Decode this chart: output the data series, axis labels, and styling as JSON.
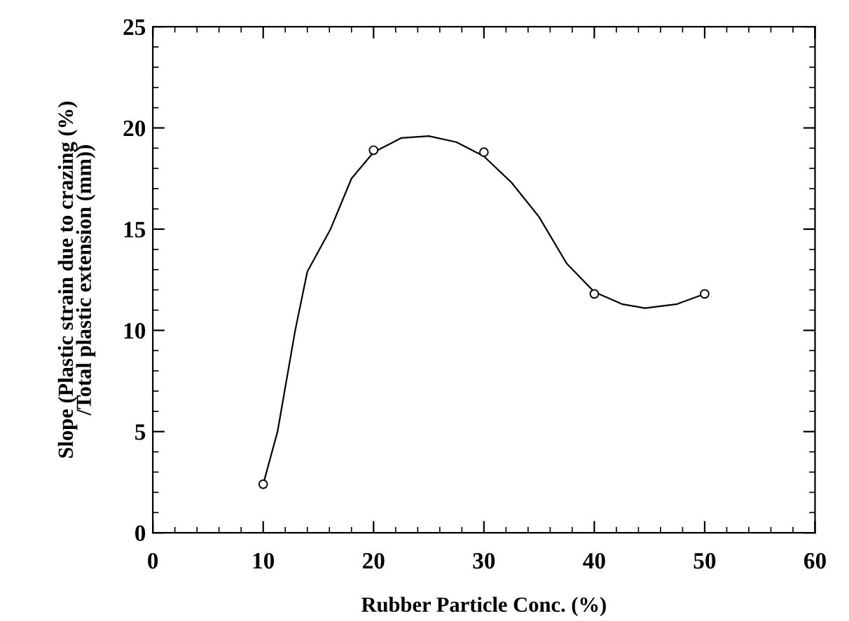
{
  "chart_data": {
    "type": "line",
    "xlabel": "Rubber Particle Conc. (%)",
    "ylabel": "Slope (Plastic strain due to crazing (%)\n/Total plastic extension (mm))",
    "xlim": [
      0,
      60
    ],
    "ylim": [
      0,
      25
    ],
    "xticks": [
      0,
      10,
      20,
      30,
      40,
      50,
      60
    ],
    "yticks": [
      0,
      5,
      10,
      15,
      20,
      25
    ],
    "grid": false,
    "legend": false,
    "series": [
      {
        "color": "#000000",
        "marker": "none",
        "x": [
          10,
          11.3,
          12.9,
          14,
          16.1,
          18,
          20,
          22.5,
          25,
          27.5,
          30,
          32.5,
          35,
          37.5,
          40,
          42.5,
          44.6,
          47.5,
          50
        ],
        "values": [
          2.4,
          5,
          10,
          12.9,
          15,
          17.5,
          18.8,
          19.5,
          19.6,
          19.3,
          18.6,
          17.3,
          15.6,
          13.3,
          11.9,
          11.3,
          11.1,
          11.3,
          11.8
        ]
      },
      {
        "type": "scatter",
        "color": "#000000",
        "marker": "circle",
        "x": [
          10,
          20,
          30,
          40,
          50
        ],
        "values": [
          2.4,
          18.9,
          18.8,
          11.8,
          11.8
        ]
      }
    ]
  }
}
